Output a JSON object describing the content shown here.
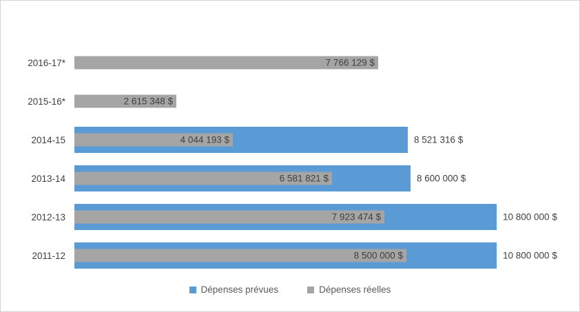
{
  "chart_data": {
    "type": "bar",
    "orientation": "horizontal",
    "title": "",
    "xlabel": "",
    "ylabel": "",
    "grid": false,
    "legend_position": "bottom",
    "xlim": [
      0,
      10800000
    ],
    "categories": [
      "2016-17*",
      "2015-16*",
      "2014-15",
      "2013-14",
      "2012-13",
      "2011-12"
    ],
    "series": [
      {
        "name": "Dépenses prévues",
        "color": "#5b9bd5",
        "values": [
          null,
          null,
          8521316,
          8600000,
          10800000,
          10800000
        ],
        "labels": [
          "",
          "",
          "8 521 316 $",
          "8 600 000 $",
          "10 800 000 $",
          "10 800 000 $"
        ]
      },
      {
        "name": "Dépenses réelles",
        "color": "#a5a5a5",
        "values": [
          7766129,
          2615348,
          4044193,
          6581821,
          7923474,
          8500000
        ],
        "labels": [
          "7 766 129 $",
          "2 615 348 $",
          "4 044 193 $",
          "6 581 821 $",
          "7 923 474 $",
          "8 500 000 $"
        ]
      }
    ]
  }
}
